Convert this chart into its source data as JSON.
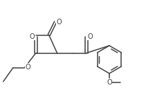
{
  "bg_color": "#ffffff",
  "line_color": "#404040",
  "line_width": 1.1,
  "font_size": 7.0,
  "figsize": [
    2.24,
    1.53
  ],
  "dpi": 100,
  "xlim": [
    0.0,
    9.5
  ],
  "ylim": [
    0.5,
    6.5
  ]
}
